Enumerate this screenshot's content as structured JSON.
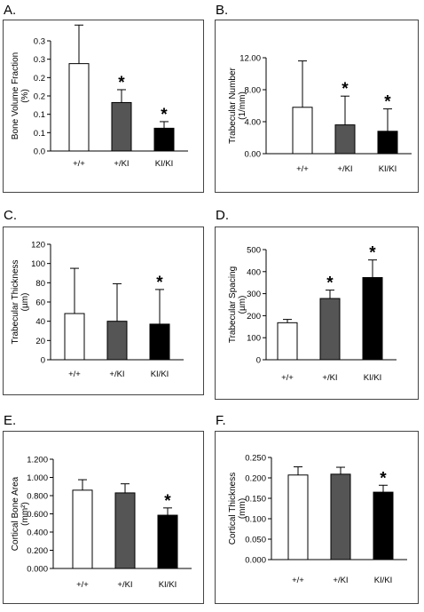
{
  "chart_data": [
    {
      "type": "bar",
      "panel": "A.",
      "ylabel": [
        "Bone Volume Fraction",
        "(%)"
      ],
      "categories": [
        "+/+",
        "+/KI",
        "KI/KI"
      ],
      "values": [
        0.238,
        0.132,
        0.062
      ],
      "errors": [
        0.105,
        0.035,
        0.018
      ],
      "significant": [
        false,
        true,
        true
      ],
      "colors": [
        "#ffffff",
        "#555555",
        "#000000"
      ],
      "ylim": [
        0,
        0.3
      ],
      "yticks": [
        0,
        0.05,
        0.1,
        0.15,
        0.2,
        0.25,
        0.3
      ],
      "yticklabels": [
        "0.0",
        "0.1",
        "0.1",
        "0.2",
        "0.2",
        "0.3",
        "0.3"
      ],
      "grid": false
    },
    {
      "type": "bar",
      "panel": "B.",
      "ylabel": [
        "Trabecular Number",
        "(1/mm)"
      ],
      "categories": [
        "+/+",
        "+/KI",
        "KI/KI"
      ],
      "values": [
        5.8,
        3.6,
        2.8
      ],
      "errors": [
        5.8,
        3.6,
        2.8
      ],
      "significant": [
        false,
        true,
        true
      ],
      "colors": [
        "#ffffff",
        "#555555",
        "#000000"
      ],
      "ylim": [
        0,
        12
      ],
      "yticks": [
        0,
        4,
        8,
        12
      ],
      "yticklabels": [
        "0.00",
        "4.00",
        "8.00",
        "12.00"
      ],
      "grid": false
    },
    {
      "type": "bar",
      "panel": "C.",
      "ylabel": [
        "Trabecular Thickness",
        "(µm)"
      ],
      "categories": [
        "+/+",
        "+/KI",
        "KI/KI"
      ],
      "values": [
        48,
        40,
        37
      ],
      "errors": [
        47,
        39,
        36
      ],
      "significant": [
        false,
        false,
        true
      ],
      "colors": [
        "#ffffff",
        "#555555",
        "#000000"
      ],
      "ylim": [
        0,
        120
      ],
      "yticks": [
        0,
        20,
        40,
        60,
        80,
        100,
        120
      ],
      "yticklabels": [
        "0",
        "20",
        "40",
        "60",
        "80",
        "100",
        "120"
      ],
      "grid": false
    },
    {
      "type": "bar",
      "panel": "D.",
      "ylabel": [
        "Trabecular Spacing",
        "(µm)"
      ],
      "categories": [
        "+/+",
        "+/KI",
        "KI/KI"
      ],
      "values": [
        168,
        278,
        373
      ],
      "errors": [
        15,
        38,
        80
      ],
      "significant": [
        false,
        true,
        true
      ],
      "colors": [
        "#ffffff",
        "#555555",
        "#000000"
      ],
      "ylim": [
        0,
        500
      ],
      "yticks": [
        0,
        100,
        200,
        300,
        400,
        500
      ],
      "yticklabels": [
        "0",
        "100",
        "200",
        "300",
        "400",
        "500"
      ],
      "grid": false
    },
    {
      "type": "bar",
      "panel": "E.",
      "ylabel": [
        "Cortical Bone Area",
        "(mm²)"
      ],
      "categories": [
        "+/+",
        "+/KI",
        "KI/KI"
      ],
      "values": [
        0.86,
        0.83,
        0.585
      ],
      "errors": [
        0.115,
        0.1,
        0.08
      ],
      "significant": [
        false,
        false,
        true
      ],
      "colors": [
        "#ffffff",
        "#555555",
        "#000000"
      ],
      "ylim": [
        0,
        1.2
      ],
      "yticks": [
        0,
        0.2,
        0.4,
        0.6,
        0.8,
        1.0,
        1.2
      ],
      "yticklabels": [
        "0.000",
        "0.200",
        "0.400",
        "0.600",
        "0.800",
        "1.000",
        "1.200"
      ],
      "grid": false
    },
    {
      "type": "bar",
      "panel": "F.",
      "ylabel": [
        "Cortical Thickness",
        "(mm)"
      ],
      "categories": [
        "+/+",
        "+/KI",
        "KI/KI"
      ],
      "values": [
        0.207,
        0.209,
        0.165
      ],
      "errors": [
        0.02,
        0.017,
        0.017
      ],
      "significant": [
        false,
        false,
        true
      ],
      "colors": [
        "#ffffff",
        "#555555",
        "#000000"
      ],
      "ylim": [
        0,
        0.25
      ],
      "yticks": [
        0,
        0.05,
        0.1,
        0.15,
        0.2,
        0.25
      ],
      "yticklabels": [
        "0.000",
        "0.050",
        "0.100",
        "0.150",
        "0.200",
        "0.250"
      ],
      "grid": false
    }
  ]
}
